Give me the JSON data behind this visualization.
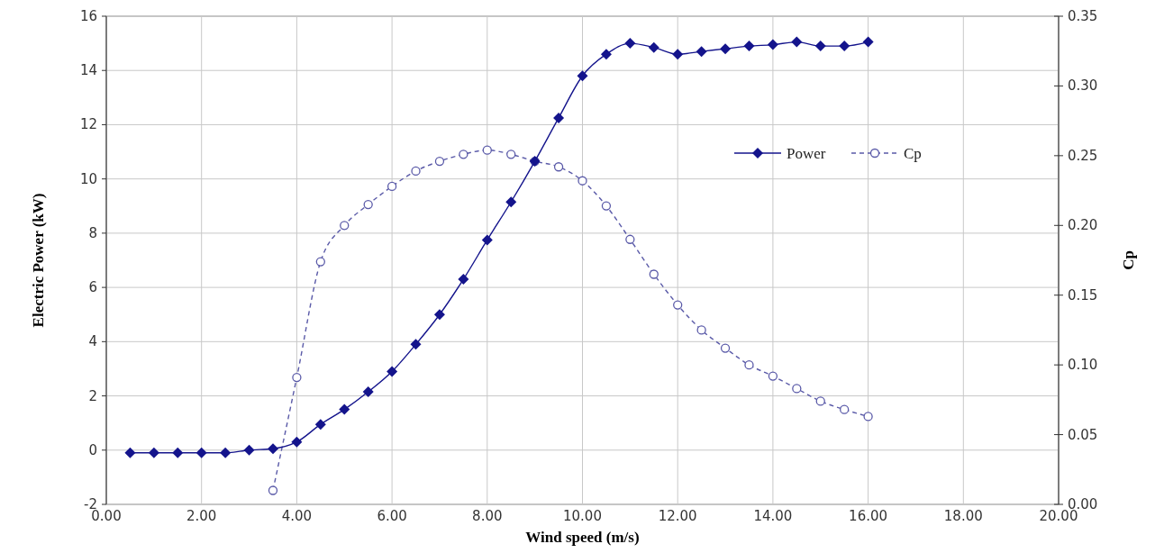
{
  "chart_data": {
    "type": "line",
    "xlabel": "Wind speed  (m/s)",
    "ylabel": "Electric Power  (kW)",
    "y2label": "Cp",
    "xlim": [
      0,
      20
    ],
    "xticks": [
      {
        "value": 0,
        "label": "0.00"
      },
      {
        "value": 2,
        "label": "2.00"
      },
      {
        "value": 4,
        "label": "4.00"
      },
      {
        "value": 6,
        "label": "6.00"
      },
      {
        "value": 8,
        "label": "8.00"
      },
      {
        "value": 10,
        "label": "10.00"
      },
      {
        "value": 12,
        "label": "12.00"
      },
      {
        "value": 14,
        "label": "14.00"
      },
      {
        "value": 16,
        "label": "16.00"
      },
      {
        "value": 18,
        "label": "18.00"
      },
      {
        "value": 20,
        "label": "20.00"
      }
    ],
    "ylim": [
      -2,
      16
    ],
    "yticks": [
      -2,
      0,
      2,
      4,
      6,
      8,
      10,
      12,
      14,
      16
    ],
    "y2lim": [
      0,
      0.35
    ],
    "y2ticks": [
      {
        "value": 0,
        "label": "0.00"
      },
      {
        "value": 0.05,
        "label": "0.05"
      },
      {
        "value": 0.1,
        "label": "0.10"
      },
      {
        "value": 0.15,
        "label": "0.15"
      },
      {
        "value": 0.2,
        "label": "0.20"
      },
      {
        "value": 0.25,
        "label": "0.25"
      },
      {
        "value": 0.3,
        "label": "0.30"
      },
      {
        "value": 0.35,
        "label": "0.35"
      }
    ],
    "grid": true,
    "legend": "top right",
    "series": [
      {
        "name": "Power",
        "color": "#14148c",
        "marker": "diamond",
        "line_style": "solid",
        "x": [
          0.5,
          1,
          1.5,
          2,
          2.5,
          3,
          3.5,
          4,
          4.5,
          5,
          5.5,
          6,
          6.5,
          7,
          7.5,
          8,
          8.5,
          9,
          9.5,
          10,
          10.5,
          11,
          11.5,
          12,
          12.5,
          13,
          13.5,
          14,
          14.5,
          15,
          15.5,
          16
        ],
        "values": [
          -0.1,
          -0.1,
          -0.1,
          -0.1,
          -0.1,
          0,
          0.05,
          0.3,
          0.95,
          1.5,
          2.15,
          2.9,
          3.9,
          5.0,
          6.3,
          7.75,
          9.15,
          10.65,
          12.25,
          13.8,
          14.6,
          15.0,
          14.85,
          14.6,
          14.7,
          14.8,
          14.9,
          14.95,
          15.05,
          14.9,
          14.9,
          15.05
        ]
      },
      {
        "name": "Cp",
        "color": "#5a5aa8",
        "marker": "circle",
        "line_style": "dashed",
        "axis": "y2",
        "x": [
          3.5,
          4,
          4.5,
          5,
          5.5,
          6,
          6.5,
          7,
          7.5,
          8,
          8.5,
          9,
          9.5,
          10,
          10.5,
          11,
          11.5,
          12,
          12.5,
          13,
          13.5,
          14,
          14.5,
          15,
          15.5,
          16
        ],
        "values": [
          0.01,
          0.091,
          0.174,
          0.2,
          0.215,
          0.228,
          0.239,
          0.246,
          0.251,
          0.254,
          0.251,
          0.246,
          0.242,
          0.232,
          0.214,
          0.19,
          0.165,
          0.143,
          0.125,
          0.112,
          0.1,
          0.092,
          0.083,
          0.074,
          0.068,
          0.063
        ]
      }
    ]
  }
}
